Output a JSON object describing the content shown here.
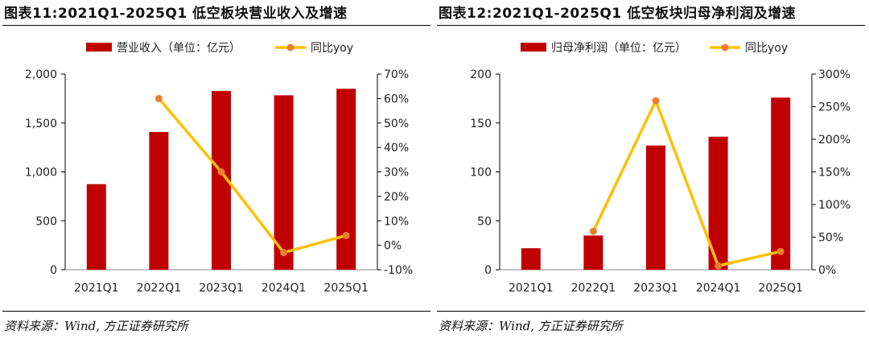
{
  "chart_data": [
    {
      "type": "bar",
      "title": "图表11:2021Q1-2025Q1 低空板块营业收入及增速",
      "source": "资料来源：Wind, 方正证券研究所",
      "categories": [
        "2021Q1",
        "2022Q1",
        "2023Q1",
        "2024Q1",
        "2025Q1"
      ],
      "series": [
        {
          "name": "营业收入（单位：亿元）",
          "kind": "bar",
          "axis": "left",
          "color": "#C00000",
          "values": [
            875,
            1408,
            1828,
            1783,
            1850
          ]
        },
        {
          "name": "同比yoy",
          "kind": "line",
          "axis": "right",
          "color": "#FFC000",
          "marker_color": "#ED7D31",
          "values": [
            null,
            60,
            30,
            -3,
            4
          ]
        }
      ],
      "ylim": [
        0,
        2000
      ],
      "y_ticks": [
        0,
        500,
        1000,
        1500,
        2000
      ],
      "y_tick_labels": [
        "0",
        "500",
        "1,000",
        "1,500",
        "2,000"
      ],
      "y2lim": [
        -10,
        70
      ],
      "y2_ticks": [
        -10,
        0,
        10,
        20,
        30,
        40,
        50,
        60,
        70
      ],
      "y2_tick_labels": [
        "-10%",
        "0%",
        "10%",
        "20%",
        "30%",
        "40%",
        "50%",
        "60%",
        "70%"
      ],
      "legend": "top-center",
      "grid": false
    },
    {
      "type": "bar",
      "title": "图表12:2021Q1-2025Q1 低空板块归母净利润及增速",
      "source": "资料来源：Wind, 方正证券研究所",
      "categories": [
        "2021Q1",
        "2022Q1",
        "2023Q1",
        "2024Q1",
        "2025Q1"
      ],
      "series": [
        {
          "name": "归母净利润（单位：亿元）",
          "kind": "bar",
          "axis": "left",
          "color": "#C00000",
          "values": [
            22,
            35,
            127,
            136,
            176
          ]
        },
        {
          "name": "同比yoy",
          "kind": "line",
          "axis": "right",
          "color": "#FFC000",
          "marker_color": "#ED7D31",
          "values": [
            null,
            59,
            259,
            6,
            28
          ]
        }
      ],
      "ylim": [
        0,
        200
      ],
      "y_ticks": [
        0,
        50,
        100,
        150,
        200
      ],
      "y_tick_labels": [
        "0",
        "50",
        "100",
        "150",
        "200"
      ],
      "y2lim": [
        0,
        300
      ],
      "y2_ticks": [
        0,
        50,
        100,
        150,
        200,
        250,
        300
      ],
      "y2_tick_labels": [
        "0%",
        "50%",
        "100%",
        "150%",
        "200%",
        "250%",
        "300%"
      ],
      "legend": "top-center",
      "grid": false
    }
  ]
}
